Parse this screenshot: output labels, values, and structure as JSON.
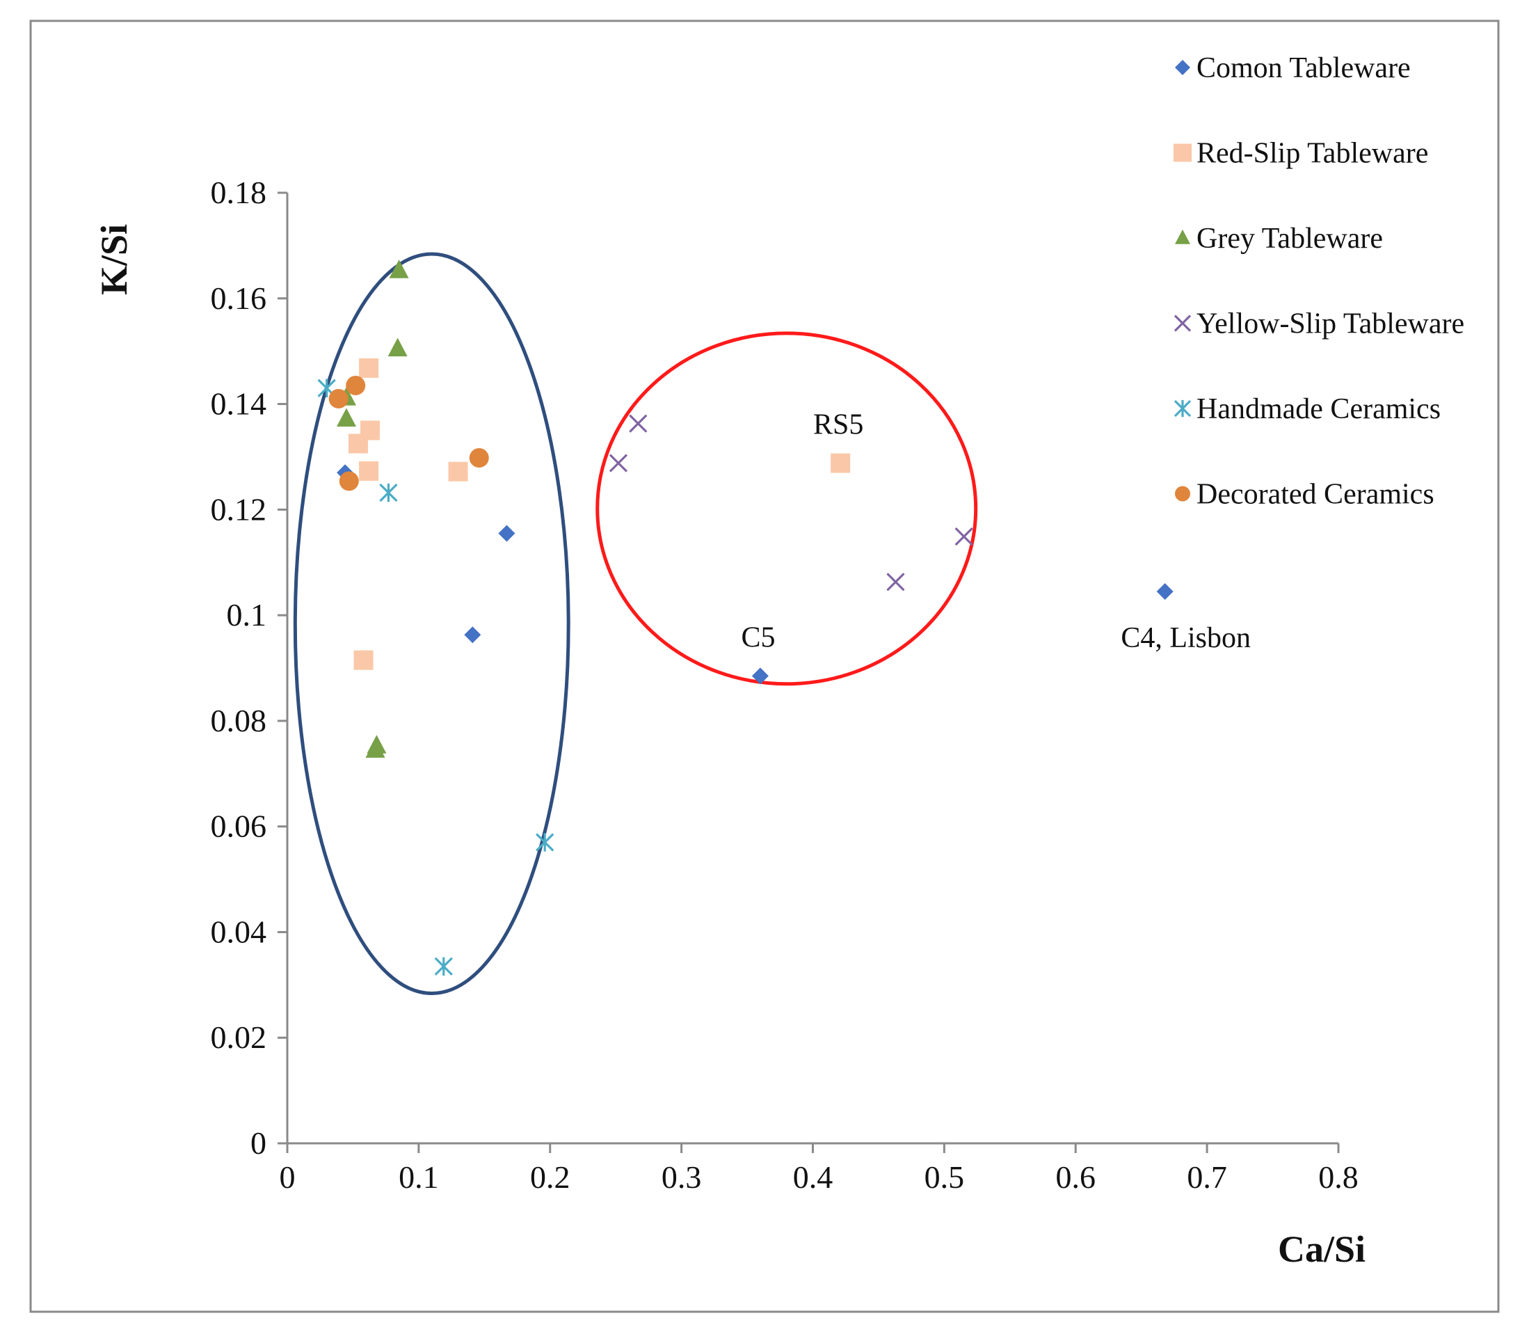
{
  "chart_data": {
    "type": "scatter",
    "title": "",
    "xlabel": "Ca/Si",
    "ylabel": "K/Si",
    "xlim": [
      0,
      0.8
    ],
    "ylim": [
      0,
      0.18
    ],
    "x_ticks": [
      0,
      0.1,
      0.2,
      0.3,
      0.4,
      0.5,
      0.6,
      0.7,
      0.8
    ],
    "x_tick_labels": [
      "0",
      "0.1",
      "0.2",
      "0.3",
      "0.4",
      "0.5",
      "0.6",
      "0.7",
      "0.8"
    ],
    "y_ticks": [
      0,
      0.02,
      0.04,
      0.06,
      0.08,
      0.1,
      0.12,
      0.14,
      0.16,
      0.18
    ],
    "y_tick_labels": [
      "0",
      "0.02",
      "0.04",
      "0.06",
      "0.08",
      "0.1",
      "0.12",
      "0.14",
      "0.16",
      "0.18"
    ],
    "grid": false,
    "legend_position": "right",
    "series": [
      {
        "name": "Comon Tableware",
        "marker": "diamond",
        "color": "#4472C4",
        "points": [
          [
            0.044,
            0.127
          ],
          [
            0.167,
            0.1155
          ],
          [
            0.141,
            0.0963
          ],
          [
            0.36,
            0.0885
          ]
        ]
      },
      {
        "name": "Red-Slip Tableware",
        "marker": "square",
        "color": "#FAC8A8",
        "points": [
          [
            0.062,
            0.1468
          ],
          [
            0.063,
            0.135
          ],
          [
            0.054,
            0.1325
          ],
          [
            0.062,
            0.1273
          ],
          [
            0.13,
            0.1272
          ],
          [
            0.058,
            0.0915
          ],
          [
            0.421,
            0.1288
          ]
        ]
      },
      {
        "name": "Grey Tableware",
        "marker": "triangle",
        "color": "#77A047",
        "points": [
          [
            0.085,
            0.1653
          ],
          [
            0.084,
            0.1505
          ],
          [
            0.045,
            0.1412
          ],
          [
            0.045,
            0.1372
          ],
          [
            0.067,
            0.0745
          ],
          [
            0.068,
            0.0753
          ]
        ]
      },
      {
        "name": "Yellow-Slip Tableware",
        "marker": "x",
        "color": "#8064A2",
        "points": [
          [
            0.267,
            0.1363
          ],
          [
            0.252,
            0.1288
          ],
          [
            0.515,
            0.1149
          ],
          [
            0.463,
            0.1063
          ]
        ]
      },
      {
        "name": "Handmade Ceramics",
        "marker": "asterisk",
        "color": "#4BACC6",
        "points": [
          [
            0.03,
            0.143
          ],
          [
            0.077,
            0.1232
          ],
          [
            0.196,
            0.057
          ],
          [
            0.119,
            0.0335
          ]
        ]
      },
      {
        "name": "Decorated Ceramics",
        "marker": "circle",
        "color": "#E0853C",
        "points": [
          [
            0.039,
            0.141
          ],
          [
            0.052,
            0.1435
          ],
          [
            0.146,
            0.1298
          ],
          [
            0.047,
            0.1254
          ]
        ]
      },
      {
        "name": "C4, Lisbon",
        "marker": "diamond",
        "color": "#4472C4",
        "points": [
          [
            0.668,
            0.1045
          ]
        ]
      }
    ],
    "annotations": [
      {
        "text": "RS5",
        "x": 0.421,
        "y": 0.1288
      },
      {
        "text": "C5",
        "x": 0.36,
        "y": 0.0885
      }
    ],
    "groupings": [
      {
        "shape": "ellipse",
        "color": "#2F4E7E",
        "center": [
          0.11,
          0.0984
        ],
        "radii": [
          0.104,
          0.07
        ]
      },
      {
        "shape": "ellipse",
        "color": "#FF1A1A",
        "center": [
          0.38,
          0.1202
        ],
        "radii": [
          0.144,
          0.0332
        ]
      }
    ]
  }
}
